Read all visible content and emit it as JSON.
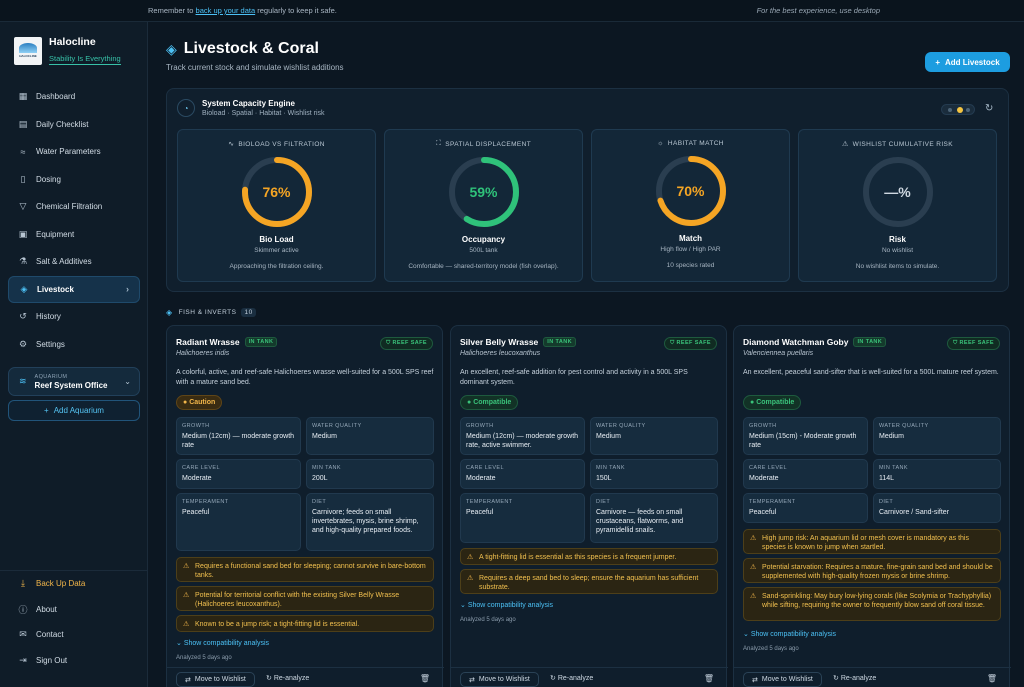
{
  "banner": {
    "left_pre": "Remember to ",
    "left_link": "back up your data",
    "left_post": " regularly to keep it safe.",
    "right": "For the best experience, use desktop"
  },
  "brand": {
    "name": "Halocline",
    "tagline": "Stability Is Everything",
    "logo_text": "HALOCLINE"
  },
  "nav": [
    {
      "label": "Dashboard",
      "icon": "grid-icon"
    },
    {
      "label": "Daily Checklist",
      "icon": "clipboard-icon"
    },
    {
      "label": "Water Parameters",
      "icon": "droplet-icon"
    },
    {
      "label": "Dosing",
      "icon": "flask-icon"
    },
    {
      "label": "Chemical Filtration",
      "icon": "filter-icon"
    },
    {
      "label": "Equipment",
      "icon": "chip-icon"
    },
    {
      "label": "Salt & Additives",
      "icon": "beaker-icon"
    },
    {
      "label": "Livestock",
      "icon": "fish-icon",
      "active": true
    },
    {
      "label": "History",
      "icon": "history-icon"
    },
    {
      "label": "Settings",
      "icon": "gear-icon"
    }
  ],
  "aquarium": {
    "label": "AQUARIUM",
    "value": "Reef System Office"
  },
  "add_aquarium": "Add Aquarium",
  "bottom_nav": [
    {
      "label": "Back Up Data",
      "icon": "download-icon"
    },
    {
      "label": "About",
      "icon": "info-icon"
    },
    {
      "label": "Contact",
      "icon": "mail-icon"
    },
    {
      "label": "Sign Out",
      "icon": "signout-icon"
    }
  ],
  "page": {
    "title": "Livestock & Coral",
    "subtitle": "Track current stock and simulate wishlist additions",
    "add_button": "Add Livestock"
  },
  "engine": {
    "title": "System Capacity Engine",
    "subtitle": "Bioload · Spatial · Habitat · Wishlist risk",
    "gauges": [
      {
        "header": "BIOLOAD VS FILTRATION",
        "value": 76,
        "display": "76%",
        "color": "#f5a524",
        "name": "Bio Load",
        "sub": "Skimmer active",
        "note": "Approaching the filtration ceiling."
      },
      {
        "header": "SPATIAL DISPLACEMENT",
        "value": 59,
        "display": "59%",
        "color": "#2fc27a",
        "name": "Occupancy",
        "sub": "500L tank",
        "note": "Comfortable — shared-territory model (fish overlap)."
      },
      {
        "header": "HABITAT MATCH",
        "value": 70,
        "display": "70%",
        "color": "#f5a524",
        "name": "Match",
        "sub": "High flow / High PAR",
        "note": "10 species rated"
      },
      {
        "header": "WISHLIST CUMULATIVE RISK",
        "value": 0,
        "display": "—%",
        "color": "#cfd8e1",
        "name": "Risk",
        "sub": "No wishlist",
        "note": "No wishlist items to simulate."
      }
    ]
  },
  "section": {
    "label": "FISH & INVERTS",
    "count": "10"
  },
  "labels": {
    "in_tank": "IN TANK",
    "reef_safe": "REEF SAFE",
    "growth": "GROWTH",
    "water_quality": "WATER QUALITY",
    "care_level": "CARE LEVEL",
    "min_tank": "MIN TANK",
    "temperament": "TEMPERAMENT",
    "diet": "DIET",
    "show_compat": "Show compatibility analysis",
    "analyzed": "Analyzed 5 days ago",
    "move_wishlist": "Move to Wishlist",
    "reanalyze": "Re-analyze"
  },
  "cards": [
    {
      "name": "Radiant Wrasse",
      "sci": "Halichoeres iridis",
      "desc": "A colorful, active, and reef-safe Halichoeres wrasse well-suited for a 500L SPS reef with a mature sand bed.",
      "status": "Caution",
      "status_type": "caution",
      "growth": "Medium (12cm) — moderate growth rate",
      "water_quality": "Medium",
      "care_level": "Moderate",
      "min_tank": "200L",
      "temperament": "Peaceful",
      "diet": "Carnivore; feeds on small invertebrates, mysis, brine shrimp, and high-quality prepared foods.",
      "warnings": [
        "Requires a functional sand bed for sleeping; cannot survive in bare-bottom tanks.",
        "Potential for territorial conflict with the existing Silver Belly Wrasse (Halichoeres leucoxanthus).",
        "Known to be a jump risk; a tight-fitting lid is essential."
      ]
    },
    {
      "name": "Silver Belly Wrasse",
      "sci": "Halichoeres leucoxanthus",
      "desc": "An excellent, reef-safe addition for pest control and activity in a 500L SPS dominant system.",
      "status": "Compatible",
      "status_type": "compat",
      "growth": "Medium (12cm) — moderate growth rate, active swimmer.",
      "water_quality": "Medium",
      "care_level": "Moderate",
      "min_tank": "150L",
      "temperament": "Peaceful",
      "diet": "Carnivore — feeds on small crustaceans, flatworms, and pyramidellid snails.",
      "warnings": [
        "A tight-fitting lid is essential as this species is a frequent jumper.",
        "Requires a deep sand bed to sleep; ensure the aquarium has sufficient substrate."
      ]
    },
    {
      "name": "Diamond Watchman Goby",
      "sci": "Valenciennea puellaris",
      "desc": "An excellent, peaceful sand-sifter that is well-suited for a 500L mature reef system.",
      "status": "Compatible",
      "status_type": "compat",
      "growth": "Medium (15cm) - Moderate growth rate",
      "water_quality": "Medium",
      "care_level": "Moderate",
      "min_tank": "114L",
      "temperament": "Peaceful",
      "diet": "Carnivore / Sand-sifter",
      "warnings": [
        "High jump risk: An aquarium lid or mesh cover is mandatory as this species is known to jump when startled.",
        "Potential starvation: Requires a mature, fine-grain sand bed and should be supplemented with high-quality frozen mysis or brine shrimp.",
        "Sand-sprinkling: May bury low-lying corals (like Scolymia or Trachyphyllia) while sifting, requiring the owner to frequently blow sand off coral tissue."
      ]
    }
  ]
}
